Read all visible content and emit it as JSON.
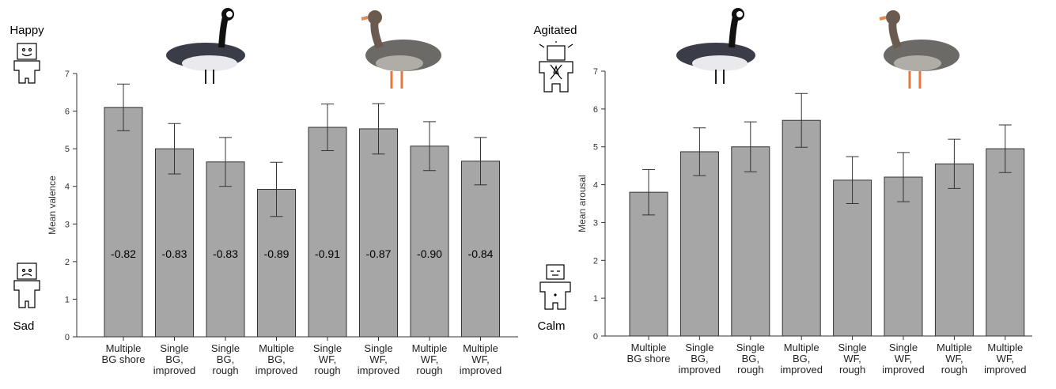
{
  "chart_data": [
    {
      "type": "bar",
      "y_label": "Mean valence",
      "top_label": "Happy",
      "bottom_label": "Sad",
      "categories": [
        [
          "Multiple",
          "BG shore"
        ],
        [
          "Single",
          "BG,",
          "improved"
        ],
        [
          "Single",
          "BG,",
          "rough"
        ],
        [
          "Multiple",
          "BG,",
          "improved"
        ],
        [
          "Single",
          "WF,",
          "rough"
        ],
        [
          "Single",
          "WF,",
          "improved"
        ],
        [
          "Multiple",
          "WF,",
          "rough"
        ],
        [
          "Multiple",
          "WF,",
          "improved"
        ]
      ],
      "values": [
        6.1,
        5.0,
        4.65,
        3.92,
        5.57,
        5.53,
        5.07,
        4.67
      ],
      "errors": [
        0.62,
        0.67,
        0.65,
        0.72,
        0.62,
        0.67,
        0.65,
        0.63
      ],
      "bar_annotations": [
        "-0.82",
        "-0.83",
        "-0.83",
        "-0.89",
        "-0.91",
        "-0.87",
        "-0.90",
        "-0.84"
      ],
      "color": "#a6a6a6",
      "ylim": [
        0,
        7
      ],
      "yticks": [
        0,
        1,
        2,
        3,
        4,
        5,
        6,
        7
      ]
    },
    {
      "type": "bar",
      "y_label": "Mean arousal",
      "top_label": "Agitated",
      "bottom_label": "Calm",
      "categories": [
        [
          "Multiple",
          "BG shore"
        ],
        [
          "Single",
          "BG,",
          "improved"
        ],
        [
          "Single",
          "BG,",
          "rough"
        ],
        [
          "Multiple",
          "BG,",
          "improved"
        ],
        [
          "Single",
          "WF,",
          "rough"
        ],
        [
          "Single",
          "WF,",
          "improved"
        ],
        [
          "Multiple",
          "WF,",
          "rough"
        ],
        [
          "Multiple",
          "WF,",
          "improved"
        ]
      ],
      "values": [
        3.8,
        4.87,
        5.0,
        5.7,
        4.12,
        4.2,
        4.55,
        4.95
      ],
      "errors": [
        0.6,
        0.63,
        0.66,
        0.71,
        0.62,
        0.65,
        0.65,
        0.63
      ],
      "color": "#a6a6a6",
      "ylim": [
        0,
        7
      ],
      "yticks": [
        0,
        1,
        2,
        3,
        4,
        5,
        6,
        7
      ]
    }
  ]
}
